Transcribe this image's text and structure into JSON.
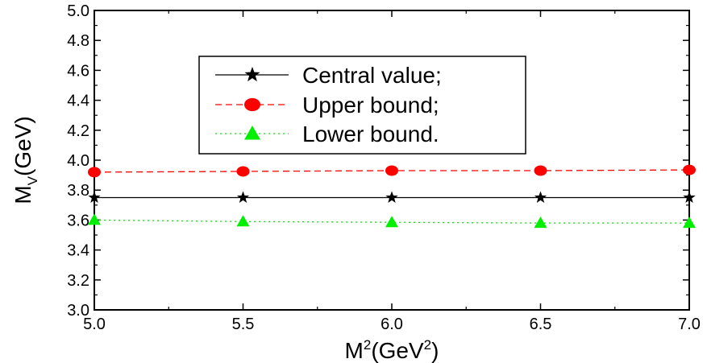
{
  "chart_data": {
    "type": "line",
    "xlabel": {
      "base": "M",
      "sup": "2",
      "open": "(GeV",
      "sup2": "2",
      "close": ")"
    },
    "ylabel": {
      "base": "M",
      "sub": "V",
      "rest": "(GeV)"
    },
    "xlim": [
      5.0,
      7.0
    ],
    "ylim": [
      3.0,
      5.0
    ],
    "x_ticks": [
      "5.0",
      "5.5",
      "6.0",
      "6.5",
      "7.0"
    ],
    "y_ticks": [
      "3.0",
      "3.2",
      "3.4",
      "3.6",
      "3.8",
      "4.0",
      "4.2",
      "4.4",
      "4.6",
      "4.8",
      "5.0"
    ],
    "x": [
      5.0,
      5.5,
      6.0,
      6.5,
      7.0
    ],
    "series": [
      {
        "name": "Central value;",
        "values": [
          3.75,
          3.75,
          3.75,
          3.75,
          3.75
        ],
        "color": "#000000",
        "marker": "star",
        "linestyle": "solid"
      },
      {
        "name": "Upper bound;",
        "values": [
          3.92,
          3.925,
          3.93,
          3.93,
          3.935
        ],
        "color": "#ff0000",
        "marker": "circle",
        "linestyle": "dashed"
      },
      {
        "name": "Lower bound.",
        "values": [
          3.6,
          3.59,
          3.585,
          3.58,
          3.58
        ],
        "color": "#00ee00",
        "marker": "triangle",
        "linestyle": "dotted"
      }
    ],
    "legend_position": "top-center",
    "grid": false
  }
}
